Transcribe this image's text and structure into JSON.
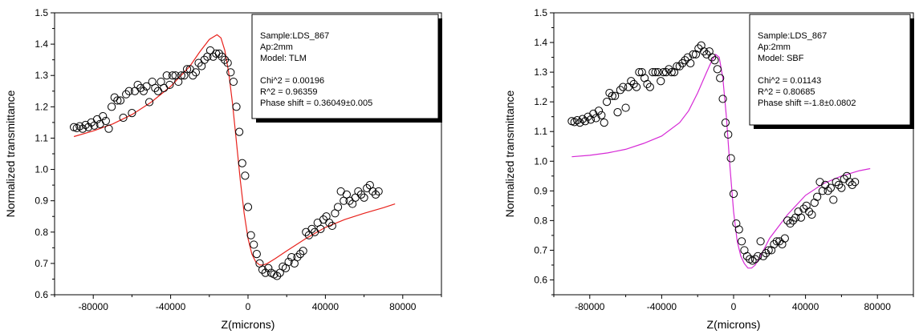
{
  "chart_data": [
    {
      "type": "scatter",
      "xlabel": "Z(microns)",
      "ylabel": "Normalized transmittance",
      "xlim": [
        -100000,
        100000
      ],
      "ylim": [
        0.6,
        1.5
      ],
      "xticks": [
        -80000,
        -40000,
        0,
        40000,
        80000
      ],
      "xtick_labels": [
        "-80000",
        "-40000",
        "0",
        "40000",
        "80000"
      ],
      "yticks": [
        0.6,
        0.7,
        0.8,
        0.9,
        1.0,
        1.1,
        1.2,
        1.3,
        1.4,
        1.5
      ],
      "ytick_labels": [
        "0.6",
        "0.7",
        "0.8",
        "0.9",
        "1.0",
        "1.1",
        "1.2",
        "1.3",
        "1.4",
        "1.5"
      ],
      "info_lines": [
        "Sample:LDS_867",
        "Ap:2mm",
        "Model: TLM",
        "",
        "Chi^2    =  0.00196",
        "R^2      =  0.96359",
        "Phase shift = 0.36049±0.005"
      ],
      "fit_color": "#e8221c",
      "fit": {
        "x": [
          -90000,
          -80000,
          -70000,
          -60000,
          -50000,
          -40000,
          -30000,
          -25000,
          -20000,
          -16000,
          -14000,
          -12000,
          -10000,
          -8000,
          -6000,
          -4000,
          -2000,
          0,
          2000,
          4000,
          6000,
          8000,
          10000,
          14000,
          20000,
          30000,
          40000,
          50000,
          60000,
          70000,
          76000
        ],
        "y": [
          1.105,
          1.123,
          1.145,
          1.175,
          1.215,
          1.265,
          1.33,
          1.375,
          1.415,
          1.43,
          1.42,
          1.38,
          1.31,
          1.21,
          1.09,
          0.965,
          0.86,
          0.78,
          0.73,
          0.705,
          0.695,
          0.695,
          0.7,
          0.715,
          0.74,
          0.78,
          0.815,
          0.84,
          0.86,
          0.878,
          0.89
        ]
      },
      "points": {
        "x": [
          -90000,
          -88500,
          -87000,
          -85500,
          -84000,
          -82500,
          -81000,
          -79500,
          -78000,
          -76500,
          -75000,
          -73500,
          -72000,
          -70500,
          -69000,
          -67500,
          -66000,
          -64500,
          -63000,
          -61500,
          -60000,
          -58500,
          -57000,
          -55500,
          -54000,
          -52500,
          -51000,
          -49500,
          -48000,
          -46500,
          -45000,
          -43500,
          -42000,
          -40500,
          -39000,
          -37500,
          -36000,
          -34500,
          -33000,
          -31500,
          -30000,
          -28500,
          -27000,
          -25500,
          -24000,
          -22500,
          -21000,
          -19500,
          -18000,
          -16500,
          -15000,
          -13500,
          -12000,
          -10500,
          -9000,
          -7500,
          -6000,
          -4500,
          -3000,
          -1500,
          0,
          1500,
          3000,
          4500,
          6000,
          7500,
          9000,
          10500,
          12000,
          13500,
          15000,
          16500,
          18000,
          19500,
          21000,
          22500,
          24000,
          25500,
          27000,
          28500,
          30000,
          31500,
          33000,
          34500,
          36000,
          37500,
          39000,
          40500,
          42000,
          43500,
          45000,
          46500,
          48000,
          49500,
          51000,
          52500,
          54000,
          55500,
          57000,
          58500,
          60000,
          61500,
          63000,
          64500,
          66000,
          67500
        ],
        "y": [
          1.135,
          1.132,
          1.138,
          1.13,
          1.142,
          1.135,
          1.15,
          1.14,
          1.16,
          1.145,
          1.17,
          1.155,
          1.13,
          1.2,
          1.23,
          1.22,
          1.22,
          1.165,
          1.24,
          1.25,
          1.18,
          1.25,
          1.27,
          1.26,
          1.25,
          1.265,
          1.215,
          1.28,
          1.26,
          1.25,
          1.28,
          1.26,
          1.3,
          1.27,
          1.3,
          1.3,
          1.28,
          1.3,
          1.3,
          1.32,
          1.32,
          1.3,
          1.31,
          1.34,
          1.33,
          1.35,
          1.36,
          1.38,
          1.36,
          1.37,
          1.37,
          1.36,
          1.35,
          1.34,
          1.31,
          1.28,
          1.2,
          1.12,
          1.02,
          0.98,
          0.88,
          0.79,
          0.76,
          0.73,
          0.7,
          0.68,
          0.67,
          0.685,
          0.67,
          0.665,
          0.66,
          0.67,
          0.69,
          0.685,
          0.705,
          0.72,
          0.7,
          0.72,
          0.73,
          0.74,
          0.8,
          0.79,
          0.81,
          0.8,
          0.83,
          0.81,
          0.84,
          0.85,
          0.83,
          0.82,
          0.86,
          0.88,
          0.93,
          0.9,
          0.92,
          0.9,
          0.89,
          0.91,
          0.93,
          0.92,
          0.91,
          0.94,
          0.95,
          0.93,
          0.92,
          0.93
        ]
      }
    },
    {
      "type": "scatter",
      "xlabel": "Z(microns)",
      "ylabel": "Normalized transmittance",
      "xlim": [
        -100000,
        100000
      ],
      "ylim": [
        0.55,
        1.5
      ],
      "xticks": [
        -80000,
        -40000,
        0,
        40000,
        80000
      ],
      "xtick_labels": [
        "-80000",
        "-40000",
        "0",
        "40000",
        "80000"
      ],
      "yticks": [
        0.6,
        0.7,
        0.8,
        0.9,
        1.0,
        1.1,
        1.2,
        1.3,
        1.4,
        1.5
      ],
      "ytick_labels": [
        "0.6",
        "0.7",
        "0.8",
        "0.9",
        "1.0",
        "1.1",
        "1.2",
        "1.3",
        "1.4",
        "1.5"
      ],
      "info_lines": [
        "Sample:LDS_867",
        "Ap:2mm",
        "Model: SBF",
        "",
        "Chi^2    =  0.01143",
        "R^2      =  0.80685",
        "Phase shift =-1.8±0.0802"
      ],
      "fit_color": "#d62ad6",
      "fit": {
        "x": [
          -90000,
          -80000,
          -70000,
          -60000,
          -50000,
          -40000,
          -30000,
          -25000,
          -20000,
          -15000,
          -12000,
          -10000,
          -8000,
          -6000,
          -4000,
          -2000,
          0,
          2000,
          4000,
          6000,
          8000,
          10000,
          12000,
          15000,
          20000,
          30000,
          40000,
          50000,
          60000,
          70000,
          76000
        ],
        "y": [
          1.015,
          1.02,
          1.028,
          1.04,
          1.06,
          1.085,
          1.13,
          1.17,
          1.23,
          1.3,
          1.34,
          1.36,
          1.35,
          1.28,
          1.15,
          0.98,
          0.83,
          0.73,
          0.68,
          0.655,
          0.64,
          0.64,
          0.65,
          0.68,
          0.74,
          0.82,
          0.885,
          0.925,
          0.95,
          0.968,
          0.975
        ]
      },
      "points": {
        "x": [
          -90000,
          -88500,
          -87000,
          -85500,
          -84000,
          -82500,
          -81000,
          -79500,
          -78000,
          -76500,
          -75000,
          -73500,
          -72000,
          -70500,
          -69000,
          -67500,
          -66000,
          -64500,
          -63000,
          -61500,
          -60000,
          -58500,
          -57000,
          -55500,
          -54000,
          -52500,
          -51000,
          -49500,
          -48000,
          -46500,
          -45000,
          -43500,
          -42000,
          -40500,
          -39000,
          -37500,
          -36000,
          -34500,
          -33000,
          -31500,
          -30000,
          -28500,
          -27000,
          -25500,
          -24000,
          -22500,
          -21000,
          -19500,
          -18000,
          -16500,
          -15000,
          -13500,
          -12000,
          -10500,
          -9000,
          -7500,
          -6000,
          -4500,
          -3000,
          -1500,
          0,
          1500,
          3000,
          4500,
          6000,
          7500,
          9000,
          10500,
          12000,
          13500,
          15000,
          16500,
          18000,
          19500,
          21000,
          22500,
          24000,
          25500,
          27000,
          28500,
          30000,
          31500,
          33000,
          34500,
          36000,
          37500,
          39000,
          40500,
          42000,
          43500,
          45000,
          46500,
          48000,
          49500,
          51000,
          52500,
          54000,
          55500,
          57000,
          58500,
          60000,
          61500,
          63000,
          64500,
          66000,
          67500
        ],
        "y": [
          1.135,
          1.132,
          1.138,
          1.13,
          1.142,
          1.135,
          1.15,
          1.14,
          1.16,
          1.145,
          1.17,
          1.155,
          1.13,
          1.2,
          1.23,
          1.22,
          1.22,
          1.165,
          1.24,
          1.25,
          1.18,
          1.25,
          1.27,
          1.26,
          1.25,
          1.3,
          1.3,
          1.28,
          1.26,
          1.25,
          1.3,
          1.3,
          1.3,
          1.27,
          1.3,
          1.3,
          1.31,
          1.3,
          1.3,
          1.32,
          1.32,
          1.33,
          1.34,
          1.35,
          1.33,
          1.36,
          1.36,
          1.38,
          1.39,
          1.37,
          1.36,
          1.37,
          1.35,
          1.34,
          1.31,
          1.28,
          1.21,
          1.13,
          1.09,
          1.01,
          0.89,
          0.79,
          0.77,
          0.73,
          0.7,
          0.68,
          0.67,
          0.665,
          0.67,
          0.68,
          0.73,
          0.68,
          0.69,
          0.7,
          0.7,
          0.72,
          0.73,
          0.73,
          0.72,
          0.74,
          0.8,
          0.79,
          0.8,
          0.81,
          0.83,
          0.81,
          0.84,
          0.85,
          0.83,
          0.82,
          0.86,
          0.88,
          0.93,
          0.9,
          0.92,
          0.9,
          0.91,
          0.87,
          0.93,
          0.92,
          0.91,
          0.94,
          0.95,
          0.93,
          0.92,
          0.93
        ]
      }
    }
  ]
}
